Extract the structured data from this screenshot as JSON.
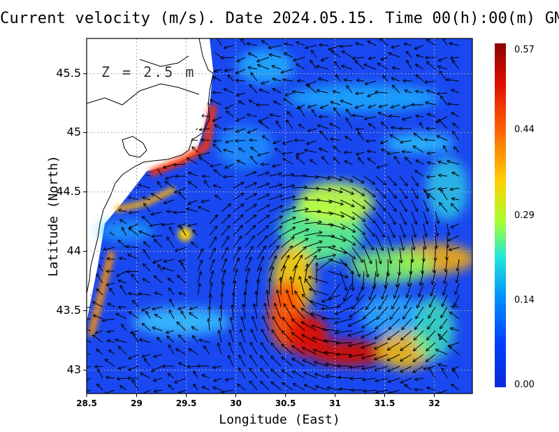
{
  "title": "Current velocity (m/s). Date 2024.05.15. Time 00(h):00(m) GMT",
  "depth_label": "Z = 2.5 m",
  "xlabel": "Longitude (East)",
  "ylabel": "Latitude (North)",
  "x_ticks": [
    "28.5",
    "29",
    "29.5",
    "30",
    "30.5",
    "31",
    "31.5",
    "32"
  ],
  "y_ticks": [
    "45.5",
    "45",
    "44.5",
    "44",
    "43.5",
    "43"
  ],
  "colorbar": {
    "labels": [
      "0.57",
      "0.44",
      "0.29",
      "0.14",
      "0.00"
    ],
    "colors": [
      "#8b0000",
      "#e01000",
      "#ff6000",
      "#ffd000",
      "#a8ff30",
      "#20e8d8",
      "#0090ff",
      "#0040ff",
      "#0a2bdc"
    ]
  },
  "chart_data": {
    "type": "heatmap",
    "title": "Current velocity (m/s). Date 2024.05.15. Time 00(h):00(m) GMT",
    "xlabel": "Longitude (East)",
    "ylabel": "Latitude (North)",
    "xlim": [
      28.5,
      32.4
    ],
    "ylim": [
      42.8,
      45.8
    ],
    "units": "m/s",
    "value_range": [
      0.0,
      0.57
    ],
    "grid": true
  }
}
